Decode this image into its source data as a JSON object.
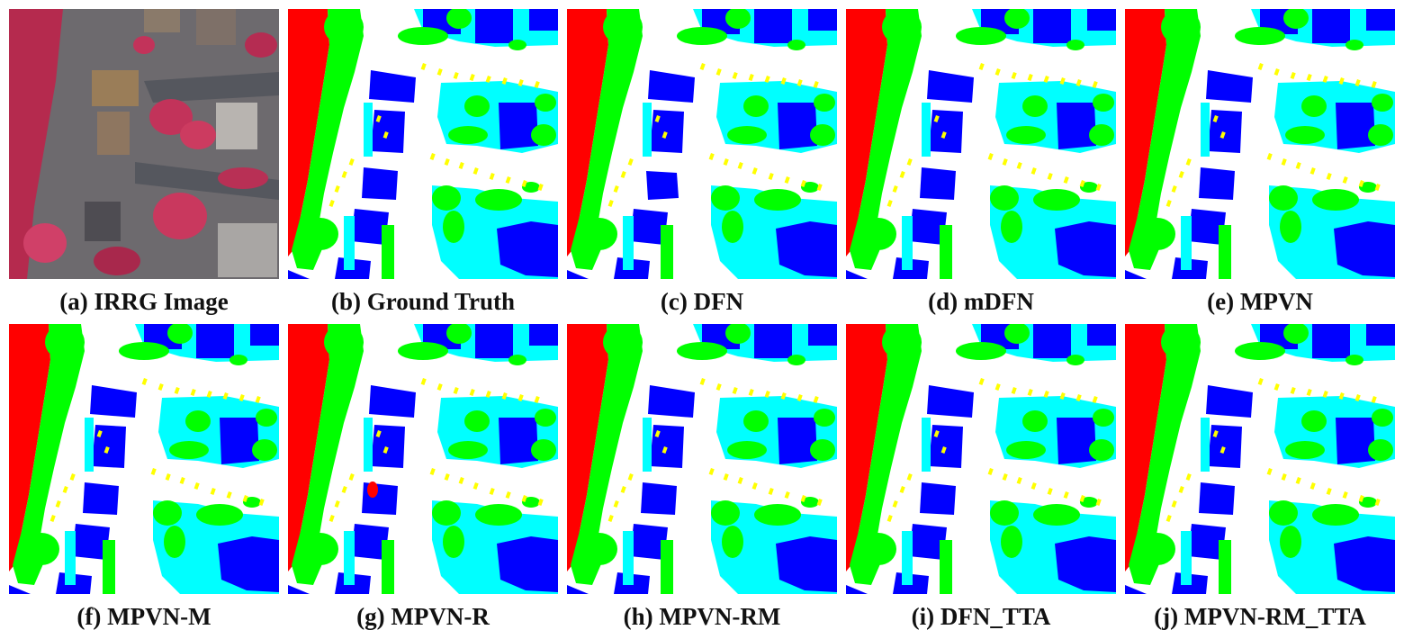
{
  "figure": {
    "panels": [
      {
        "id": "a",
        "caption": "(a) IRRG Image",
        "kind": "irrg"
      },
      {
        "id": "b",
        "caption": "(b) Ground Truth",
        "kind": "segmentation"
      },
      {
        "id": "c",
        "caption": "(c) DFN",
        "kind": "segmentation"
      },
      {
        "id": "d",
        "caption": "(d) mDFN",
        "kind": "segmentation"
      },
      {
        "id": "e",
        "caption": "(e) MPVN",
        "kind": "segmentation"
      },
      {
        "id": "f",
        "caption": "(f) MPVN-M",
        "kind": "segmentation"
      },
      {
        "id": "g",
        "caption": "(g) MPVN-R",
        "kind": "segmentation"
      },
      {
        "id": "h",
        "caption": "(h) MPVN-RM",
        "kind": "segmentation"
      },
      {
        "id": "i",
        "caption": "(i) DFN_TTA",
        "kind": "segmentation"
      },
      {
        "id": "j",
        "caption": "(j) MPVN-RM_TTA",
        "kind": "segmentation"
      }
    ]
  },
  "colors": {
    "impervious": "#ffffff",
    "building": "#0000ff",
    "low_vegetation": "#00ffff",
    "tree": "#00ff00",
    "car": "#ffff00",
    "clutter": "#ff0000"
  }
}
